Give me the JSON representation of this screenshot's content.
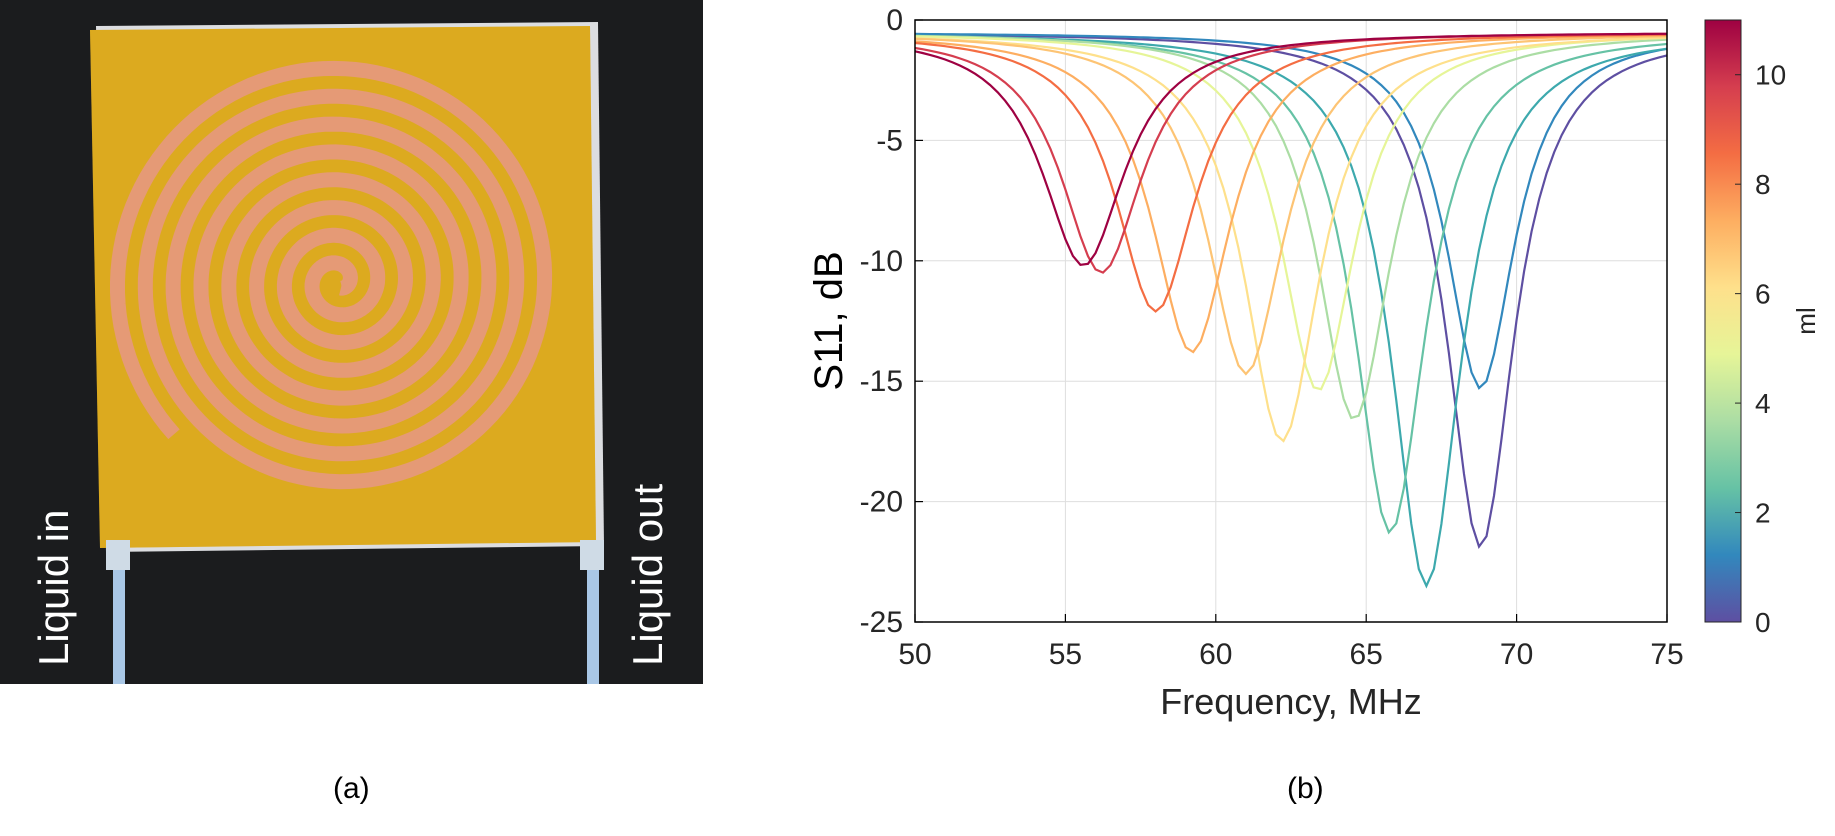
{
  "panel_a": {
    "label_in": "Liquid in",
    "label_out": "Liquid out",
    "caption": "(a)",
    "colors": {
      "background": "#1a1a1c",
      "board": "#d9a91c",
      "copper": "#e0906a",
      "tube": "#a9c7e6"
    }
  },
  "panel_b": {
    "caption": "(b)"
  },
  "chart_data": {
    "type": "line",
    "xlabel": "Frequency, MHz",
    "ylabel": "S11, dB",
    "xlim": [
      50,
      75
    ],
    "ylim": [
      -25,
      0
    ],
    "xticks": [
      50,
      55,
      60,
      65,
      70,
      75
    ],
    "yticks": [
      0,
      -5,
      -10,
      -15,
      -20,
      -25
    ],
    "grid": true,
    "legend": "none",
    "colorbar": {
      "label": "ml",
      "range": [
        0,
        11
      ],
      "ticks": [
        0,
        2,
        4,
        6,
        8,
        10
      ],
      "colormap": "spectral",
      "colors": [
        "#5e4fa2",
        "#3288bd",
        "#66c2a5",
        "#abdda4",
        "#e6f598",
        "#fee08b",
        "#fdae61",
        "#f46d43",
        "#d53e4f",
        "#9e0142"
      ]
    },
    "series": [
      {
        "volume": 0,
        "f0": 68.8,
        "depth": -21.9,
        "color": "#5e4fa2"
      },
      {
        "volume": 1,
        "f0": 68.8,
        "depth": -15.3,
        "color": "#3288bd"
      },
      {
        "volume": 2,
        "f0": 67.0,
        "depth": -23.5,
        "color": "#3da9ad"
      },
      {
        "volume": 3,
        "f0": 65.8,
        "depth": -21.3,
        "color": "#66c2a5"
      },
      {
        "volume": 4,
        "f0": 64.6,
        "depth": -16.6,
        "color": "#abdda4"
      },
      {
        "volume": 5,
        "f0": 63.4,
        "depth": -15.4,
        "color": "#e6f598"
      },
      {
        "volume": 6,
        "f0": 62.2,
        "depth": -17.5,
        "color": "#fee08b"
      },
      {
        "volume": 7,
        "f0": 61.0,
        "depth": -14.7,
        "color": "#fdc474"
      },
      {
        "volume": 8,
        "f0": 59.2,
        "depth": -13.8,
        "color": "#fdae61"
      },
      {
        "volume": 9,
        "f0": 58.0,
        "depth": -12.1,
        "color": "#f46d43"
      },
      {
        "volume": 10,
        "f0": 56.2,
        "depth": -10.5,
        "color": "#d53e4f"
      },
      {
        "volume": 11,
        "f0": 55.6,
        "depth": -10.2,
        "color": "#9e0142"
      }
    ]
  }
}
